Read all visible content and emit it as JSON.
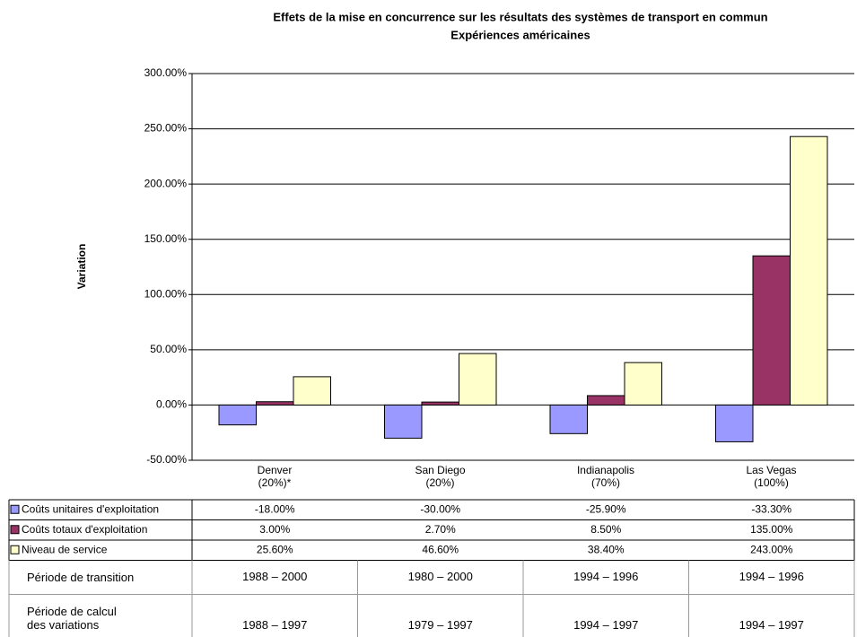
{
  "chart_data": {
    "type": "bar",
    "title": "Effets de la mise en concurrence sur les résultats des systèmes de transport en commun",
    "subtitle": "Expériences américaines",
    "ylabel": "Variation",
    "categories": [
      "Denver\n(20%)*",
      "San Diego\n(20%)",
      "Indianapolis\n(70%)",
      "Las Vegas\n(100%)"
    ],
    "series": [
      {
        "name": "Coûts unitaires d'exploitation",
        "color": "#9999ff",
        "values": [
          -18,
          -30,
          -25.9,
          -33.3
        ],
        "value_labels": [
          "-18.00%",
          "-30.00%",
          "-25.90%",
          "-33.30%"
        ]
      },
      {
        "name": "Coûts totaux d'exploitation",
        "color": "#993366",
        "values": [
          3,
          2.7,
          8.5,
          135
        ],
        "value_labels": [
          "3.00%",
          "2.70%",
          "8.50%",
          "135.00%"
        ]
      },
      {
        "name": "Niveau de service",
        "color": "#ffffcc",
        "values": [
          25.6,
          46.6,
          38.4,
          243
        ],
        "value_labels": [
          "25.60%",
          "46.60%",
          "38.40%",
          "243.00%"
        ]
      }
    ],
    "ylim": [
      -50,
      300
    ],
    "yticks": [
      {
        "value": -50,
        "label": "-50.00%"
      },
      {
        "value": 0,
        "label": "0.00%"
      },
      {
        "value": 50,
        "label": "50.00%"
      },
      {
        "value": 100,
        "label": "100.00%"
      },
      {
        "value": 150,
        "label": "150.00%"
      },
      {
        "value": 200,
        "label": "200.00%"
      },
      {
        "value": 250,
        "label": "250.00%"
      },
      {
        "value": 300,
        "label": "300.00%"
      }
    ],
    "grid": true,
    "extra_rows": [
      {
        "label": "Période de transition",
        "values": [
          "1988 – 2000",
          "1980 – 2000",
          "1994 – 1996",
          "1994 – 1996"
        ]
      },
      {
        "label": "Période de calcul\ndes variations",
        "values": [
          "1988 – 1997",
          "1979 – 1997",
          "1994 – 1997",
          "1994 – 1997"
        ]
      }
    ]
  }
}
